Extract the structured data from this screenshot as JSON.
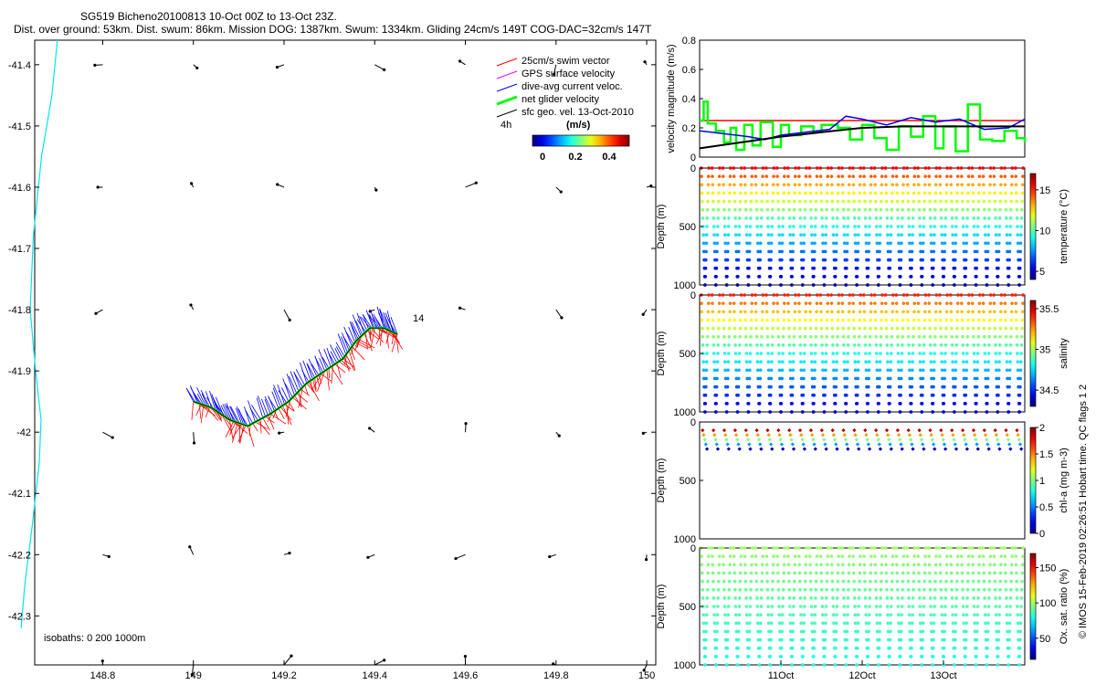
{
  "header": {
    "line1": "SG519 Bicheno20100813 10-Oct 00Z to 13-Oct 23Z.",
    "line2": "Dist. over ground: 53km. Dist. swum: 86km. Mission DOG: 1387km. Swum: 1334km. Gliding 24cm/s 149T COG-DAC=32cm/s 147T"
  },
  "credit": "© IMOS 15-Feb-2019 02:26:51 Hobart time. QC flags 1  2",
  "colors": {
    "swim": "#ff0000",
    "gps": "#ff00ff",
    "dac": "#0000ff",
    "net": "#00ff00",
    "geo": "#000000",
    "coast": "#00e5ee",
    "track": "#000000"
  },
  "chart_data": [
    {
      "type": "scatter",
      "id": "map",
      "title": "",
      "xlabel": "",
      "ylabel": "",
      "xlim": [
        148.65,
        150.02
      ],
      "ylim": [
        -42.38,
        -41.36
      ],
      "xticks": [
        148.8,
        149,
        149.2,
        149.4,
        149.6,
        149.8,
        150
      ],
      "xticklabels": [
        "148.8",
        "149",
        "149.2",
        "149.4",
        "149.6",
        "149.8",
        "150"
      ],
      "yticks": [
        -41.4,
        -41.5,
        -41.6,
        -41.7,
        -41.8,
        -41.9,
        -42,
        -42.1,
        -42.2,
        -42.3
      ],
      "yticklabels": [
        "-41.4",
        "-41.5",
        "-41.6",
        "-41.7",
        "-41.8",
        "-41.9",
        "-42",
        "-42.1",
        "-42.2",
        "-42.3"
      ],
      "legend": [
        {
          "label": "25cm/s swim vector",
          "color": "#ff0000"
        },
        {
          "label": "GPS surface velocity",
          "color": "#ff00ff"
        },
        {
          "label": "dive-avg current veloc.",
          "color": "#0000ff"
        },
        {
          "label": "net glider velocity",
          "color": "#00ff00"
        },
        {
          "label": "sfc geo. vel. 13-Oct-2010",
          "color": "#000000"
        }
      ],
      "colorbar": {
        "label": "(m/s)",
        "ticks": [
          "0",
          "0.2",
          "0.4"
        ],
        "min": 0,
        "max": 0.5,
        "side_label": "4h"
      },
      "isobaths_text": "isobaths: 0   200  1000m",
      "track_end_label": "14",
      "track": [
        [
          149.0,
          -41.95
        ],
        [
          149.04,
          -41.96
        ],
        [
          149.08,
          -41.98
        ],
        [
          149.12,
          -41.99
        ],
        [
          149.17,
          -41.97
        ],
        [
          149.21,
          -41.95
        ],
        [
          149.25,
          -41.92
        ],
        [
          149.29,
          -41.9
        ],
        [
          149.33,
          -41.88
        ],
        [
          149.36,
          -41.85
        ],
        [
          149.39,
          -41.83
        ],
        [
          149.42,
          -41.83
        ],
        [
          149.45,
          -41.84
        ]
      ],
      "coast": [
        [
          148.7,
          -41.36
        ],
        [
          148.688,
          -41.45
        ],
        [
          148.665,
          -41.55
        ],
        [
          148.647,
          -41.68
        ],
        [
          148.64,
          -41.8
        ],
        [
          148.652,
          -41.9
        ],
        [
          148.664,
          -41.98
        ],
        [
          148.66,
          -42.05
        ],
        [
          148.645,
          -42.15
        ],
        [
          148.628,
          -42.25
        ],
        [
          148.62,
          -42.32
        ]
      ]
    },
    {
      "type": "line",
      "id": "velocity",
      "ylabel": "velocity magnitude (m/s)",
      "ylim": [
        0,
        0.8
      ],
      "yticks": [
        "0",
        "0.2",
        "0.4",
        "0.6",
        "0.8"
      ],
      "x_days": [
        0,
        4
      ],
      "series": [
        {
          "name": "swim",
          "color": "#ff0000",
          "values": [
            0.25,
            0.25
          ]
        },
        {
          "name": "net",
          "color": "#00ff00",
          "x": [
            0,
            0.05,
            0.1,
            0.2,
            0.3,
            0.38,
            0.45,
            0.55,
            0.65,
            0.75,
            0.9,
            1.0,
            1.1,
            1.25,
            1.4,
            1.5,
            1.7,
            1.85,
            2.0,
            2.15,
            2.3,
            2.45,
            2.6,
            2.75,
            2.9,
            3.0,
            3.15,
            3.3,
            3.45,
            3.6,
            3.75,
            3.9,
            4.0
          ],
          "values": [
            0.25,
            0.38,
            0.23,
            0.18,
            0.1,
            0.2,
            0.05,
            0.22,
            0.08,
            0.24,
            0.07,
            0.22,
            0.15,
            0.21,
            0.17,
            0.22,
            0.2,
            0.12,
            0.22,
            0.13,
            0.05,
            0.21,
            0.14,
            0.28,
            0.06,
            0.21,
            0.04,
            0.36,
            0.12,
            0.11,
            0.18,
            0.13,
            0.1
          ]
        },
        {
          "name": "dac",
          "color": "#0000ff",
          "x": [
            0,
            0.3,
            0.6,
            0.8,
            1.0,
            1.3,
            1.6,
            1.8,
            2.0,
            2.3,
            2.6,
            2.9,
            3.2,
            3.5,
            3.8,
            4.0
          ],
          "values": [
            0.18,
            0.16,
            0.14,
            0.12,
            0.15,
            0.17,
            0.19,
            0.28,
            0.26,
            0.22,
            0.27,
            0.24,
            0.26,
            0.19,
            0.2,
            0.26
          ]
        },
        {
          "name": "geo",
          "color": "#000000",
          "x": [
            0,
            0.5,
            1.0,
            1.5,
            2.0,
            2.5,
            3.0,
            3.5,
            4.0
          ],
          "values": [
            0.06,
            0.1,
            0.14,
            0.17,
            0.2,
            0.21,
            0.21,
            0.21,
            0.21
          ]
        }
      ]
    },
    {
      "type": "scatter",
      "id": "temperature",
      "ylabel": "Depth (m)",
      "clabel": "temperature (°C)",
      "yticks": [
        "0",
        "500",
        "1000"
      ],
      "cticks": [
        "15",
        "10",
        "5"
      ],
      "cticks_values": [
        15,
        10,
        5
      ],
      "clim": [
        4,
        17
      ],
      "surface_value": 15.5,
      "deep_value": 4.5
    },
    {
      "type": "scatter",
      "id": "salinity",
      "ylabel": "Depth (m)",
      "clabel": "salinity",
      "yticks": [
        "0",
        "500",
        "1000"
      ],
      "cticks": [
        "35.5",
        "35",
        "34.5"
      ],
      "cticks_values": [
        35.5,
        35,
        34.5
      ],
      "clim": [
        34.3,
        35.6
      ],
      "surface_value": 35.4,
      "deep_value": 34.4
    },
    {
      "type": "scatter",
      "id": "chla",
      "ylabel": "Depth (m)",
      "clabel": "chl-a (mg m-3)",
      "yticks": [
        "0",
        "500",
        "1000"
      ],
      "cticks": [
        "2",
        "1.5",
        "1",
        "0.5",
        "0"
      ],
      "cticks_values": [
        2,
        1.5,
        1,
        0.5,
        0
      ],
      "clim": [
        0,
        2
      ],
      "surface_value": 1.9,
      "deep_value": 0.1
    },
    {
      "type": "scatter",
      "id": "oxygen",
      "ylabel": "Depth (m)",
      "clabel": "Ox. sat. ratio (%)",
      "yticks": [
        "0",
        "500",
        "1000"
      ],
      "cticks": [
        "150",
        "100",
        "50"
      ],
      "cticks_values": [
        150,
        100,
        50
      ],
      "clim": [
        20,
        170
      ],
      "surface_value": 100,
      "deep_value": 80
    },
    {
      "type": "table",
      "id": "time_axis",
      "xticklabels": [
        "11Oct",
        "12Oct",
        "13Oct"
      ],
      "x_days": [
        1,
        2,
        3
      ],
      "dives": 30
    }
  ]
}
